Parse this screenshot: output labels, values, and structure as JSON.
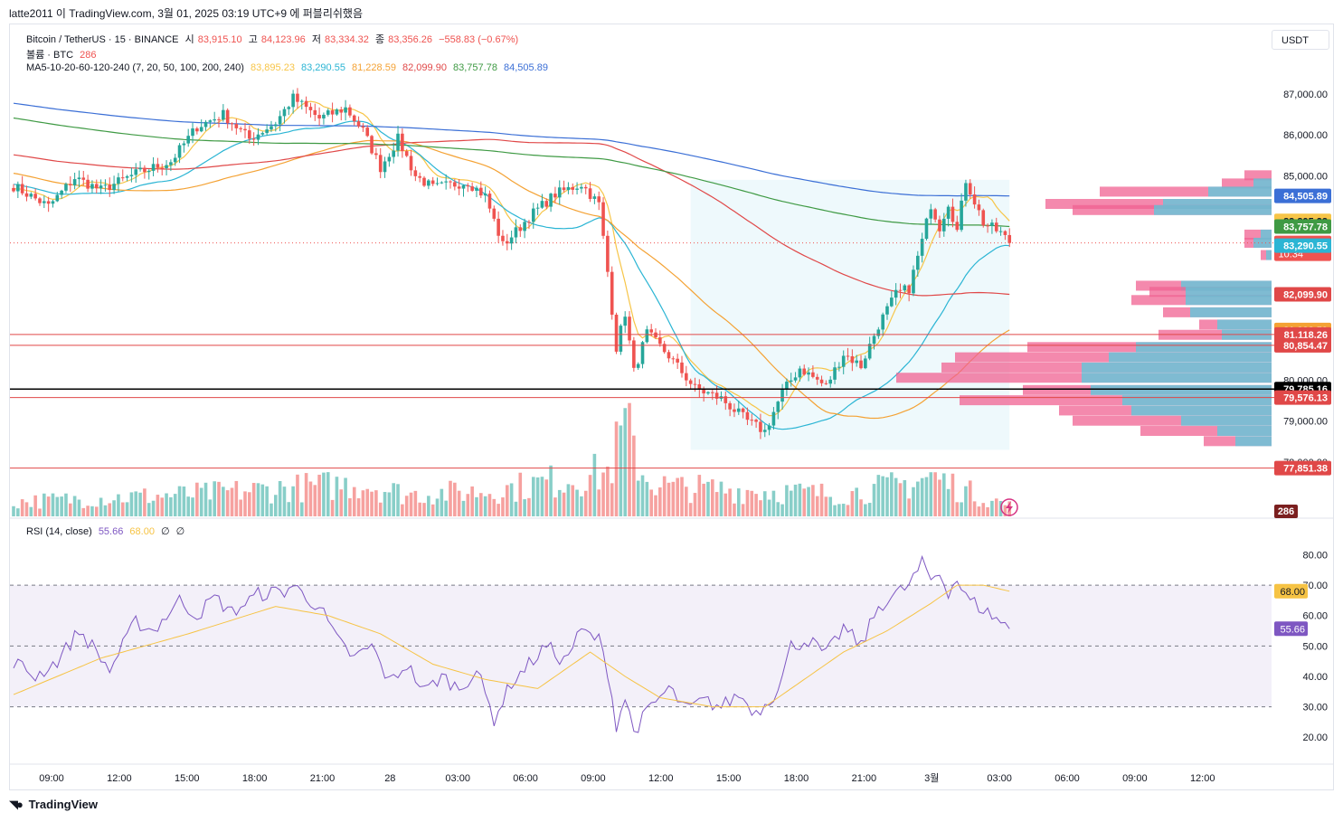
{
  "caption": "latte2011 이 TradingView.com, 3월 01, 2025 03:19 UTC+9 에 퍼블리쉬했음",
  "legend": {
    "symbol": "Bitcoin / TetherUS · 15 · BINANCE",
    "o_label": "시",
    "o": "83,915.10",
    "h_label": "고",
    "h": "84,123.96",
    "l_label": "저",
    "l": "83,334.32",
    "c_label": "종",
    "c": "83,356.26",
    "chg": "−558.83 (−0.67%)",
    "volume_label": "볼륨 · BTC",
    "volume": "286",
    "ma_label": "MA5-10-20-60-120-240 (7, 20, 50, 100, 200, 240)",
    "ma_values": [
      "83,895.23",
      "83,290.55",
      "81,228.59",
      "82,099.90",
      "83,757.78",
      "84,505.89"
    ],
    "rsi_label": "RSI (14, close)",
    "rsi_value": "55.66",
    "rsi_ma": "68.00",
    "rsi_x1": "∅",
    "rsi_x2": "∅"
  },
  "currency_button": "USDT",
  "branding": "TradingView",
  "colors": {
    "up": "#26a69a",
    "down": "#ef5350",
    "ma7": "#f7c548",
    "ma20": "#2bb5d4",
    "ma50": "#f4a234",
    "ma100": "#e04848",
    "ma200": "#3f9a44",
    "ma240": "#3b6fd6",
    "rsi": "#7e57c2",
    "rsi_ma": "#f6c344"
  },
  "chart_data": [
    {
      "type": "candlestick",
      "title": "Bitcoin / TetherUS · 15 · BINANCE",
      "x_tick_labels": [
        "09:00",
        "12:00",
        "15:00",
        "18:00",
        "21:00",
        "28",
        "03:00",
        "06:00",
        "09:00",
        "12:00",
        "15:00",
        "18:00",
        "21:00",
        "3월",
        "03:00",
        "06:00",
        "09:00",
        "12:00"
      ],
      "y_tick_labels": [
        "87,000.00",
        "86,000.00",
        "85,000.00",
        "80,000.00",
        "79,000.00",
        "78,000.00"
      ],
      "ylim": [
        77800,
        87550
      ],
      "price_tags": [
        {
          "value": 84505.89,
          "label": "84,505.89",
          "color": "#3b6fd6"
        },
        {
          "value": 83895.23,
          "label": "83,895.23",
          "color": "#f7c548"
        },
        {
          "value": 83757.78,
          "label": "83,757.78",
          "color": "#3f9a44"
        },
        {
          "value": 83356.26,
          "label": "83,356.26",
          "sub": "10:34",
          "color": "#ef5350"
        },
        {
          "value": 83290.55,
          "label": "83,290.55",
          "color": "#2bb5d4"
        },
        {
          "value": 82099.9,
          "label": "82,099.90",
          "color": "#e04848"
        },
        {
          "value": 81228.59,
          "label": "81,228.59",
          "color": "#f4a234"
        },
        {
          "value": 81118.26,
          "label": "81,118.26",
          "color": "#e04848"
        },
        {
          "value": 80854.47,
          "label": "80,854.47",
          "color": "#e04848"
        },
        {
          "value": 79785.16,
          "label": "79,785.16",
          "color": "#000000"
        },
        {
          "value": 79576.13,
          "label": "79,576.13",
          "color": "#e04848"
        },
        {
          "value": 77851.38,
          "label": "77,851.38",
          "color": "#e04848"
        }
      ],
      "horizontal_lines": [
        81118.26,
        80854.47,
        79785.16,
        79576.13,
        77851.38
      ],
      "volume_tag": "286",
      "anchors": [
        [
          0,
          84750
        ],
        [
          8,
          84250
        ],
        [
          14,
          84950
        ],
        [
          20,
          84650
        ],
        [
          28,
          85050
        ],
        [
          36,
          85350
        ],
        [
          42,
          86200
        ],
        [
          48,
          86500
        ],
        [
          54,
          85900
        ],
        [
          60,
          86300
        ],
        [
          64,
          86900
        ],
        [
          70,
          86400
        ],
        [
          76,
          86650
        ],
        [
          80,
          86100
        ],
        [
          84,
          85200
        ],
        [
          88,
          85900
        ],
        [
          92,
          85000
        ],
        [
          96,
          84700
        ],
        [
          104,
          84850
        ],
        [
          108,
          84500
        ],
        [
          112,
          83300
        ],
        [
          116,
          83750
        ],
        [
          118,
          84000
        ],
        [
          124,
          84550
        ],
        [
          130,
          84800
        ],
        [
          134,
          84300
        ],
        [
          136,
          82650
        ],
        [
          138,
          80800
        ],
        [
          140,
          81650
        ],
        [
          142,
          80200
        ],
        [
          145,
          81150
        ],
        [
          150,
          80600
        ],
        [
          156,
          79800
        ],
        [
          162,
          79550
        ],
        [
          168,
          79000
        ],
        [
          172,
          78750
        ],
        [
          176,
          79700
        ],
        [
          180,
          80300
        ],
        [
          186,
          79850
        ],
        [
          190,
          80650
        ],
        [
          194,
          80350
        ],
        [
          198,
          81350
        ],
        [
          202,
          82100
        ],
        [
          205,
          82250
        ],
        [
          208,
          83400
        ],
        [
          210,
          84300
        ],
        [
          212,
          83750
        ],
        [
          214,
          84350
        ],
        [
          216,
          83650
        ],
        [
          218,
          84900
        ],
        [
          222,
          83850
        ],
        [
          226,
          83600
        ],
        [
          228,
          83356
        ]
      ],
      "volume_anchors": [
        [
          0,
          20
        ],
        [
          40,
          30
        ],
        [
          80,
          45
        ],
        [
          90,
          30
        ],
        [
          110,
          35
        ],
        [
          136,
          60
        ],
        [
          140,
          120
        ],
        [
          145,
          50
        ],
        [
          150,
          40
        ],
        [
          170,
          35
        ],
        [
          190,
          30
        ],
        [
          205,
          45
        ],
        [
          210,
          55
        ],
        [
          220,
          30
        ],
        [
          228,
          15
        ]
      ]
    },
    {
      "type": "line",
      "title": "RSI (14, close)",
      "y_tick_labels": [
        "80.00",
        "70.00",
        "60.00",
        "50.00",
        "40.00",
        "30.00",
        "20.00"
      ],
      "ylim": [
        16.5,
        84
      ],
      "bands": [
        30,
        50,
        70
      ],
      "current": {
        "rsi": 55.66,
        "ma": 68.0
      },
      "anchors": [
        [
          0,
          45
        ],
        [
          5,
          40
        ],
        [
          10,
          45
        ],
        [
          15,
          55
        ],
        [
          18,
          50
        ],
        [
          22,
          42
        ],
        [
          28,
          58
        ],
        [
          32,
          55
        ],
        [
          38,
          65
        ],
        [
          42,
          60
        ],
        [
          46,
          66
        ],
        [
          50,
          61
        ],
        [
          56,
          67
        ],
        [
          62,
          68
        ],
        [
          64,
          70
        ],
        [
          67,
          66
        ],
        [
          70,
          63
        ],
        [
          74,
          52
        ],
        [
          78,
          46
        ],
        [
          82,
          50
        ],
        [
          86,
          38
        ],
        [
          90,
          44
        ],
        [
          94,
          35
        ],
        [
          98,
          40
        ],
        [
          102,
          36
        ],
        [
          106,
          42
        ],
        [
          110,
          26
        ],
        [
          114,
          38
        ],
        [
          118,
          44
        ],
        [
          122,
          50
        ],
        [
          126,
          45
        ],
        [
          130,
          55
        ],
        [
          134,
          52
        ],
        [
          136,
          42
        ],
        [
          138,
          24
        ],
        [
          140,
          33
        ],
        [
          142,
          22
        ],
        [
          146,
          30
        ],
        [
          150,
          36
        ],
        [
          154,
          29
        ],
        [
          158,
          32
        ],
        [
          162,
          30
        ],
        [
          166,
          34
        ],
        [
          170,
          28
        ],
        [
          174,
          34
        ],
        [
          176,
          40
        ],
        [
          178,
          50
        ],
        [
          182,
          52
        ],
        [
          186,
          47
        ],
        [
          190,
          56
        ],
        [
          194,
          50
        ],
        [
          198,
          63
        ],
        [
          202,
          67
        ],
        [
          205,
          70
        ],
        [
          208,
          77
        ],
        [
          210,
          72
        ],
        [
          212,
          74
        ],
        [
          214,
          68
        ],
        [
          216,
          72
        ],
        [
          218,
          66
        ],
        [
          222,
          62
        ],
        [
          226,
          58
        ],
        [
          228,
          55.66
        ]
      ],
      "ma_anchors": [
        [
          0,
          34
        ],
        [
          20,
          46
        ],
        [
          40,
          54
        ],
        [
          60,
          63
        ],
        [
          72,
          60
        ],
        [
          84,
          54
        ],
        [
          96,
          44
        ],
        [
          108,
          39
        ],
        [
          120,
          36
        ],
        [
          132,
          48
        ],
        [
          140,
          40
        ],
        [
          148,
          33
        ],
        [
          160,
          30
        ],
        [
          172,
          30
        ],
        [
          180,
          38
        ],
        [
          190,
          48
        ],
        [
          200,
          55
        ],
        [
          210,
          64
        ],
        [
          216,
          70
        ],
        [
          222,
          70
        ],
        [
          228,
          68
        ]
      ]
    }
  ]
}
